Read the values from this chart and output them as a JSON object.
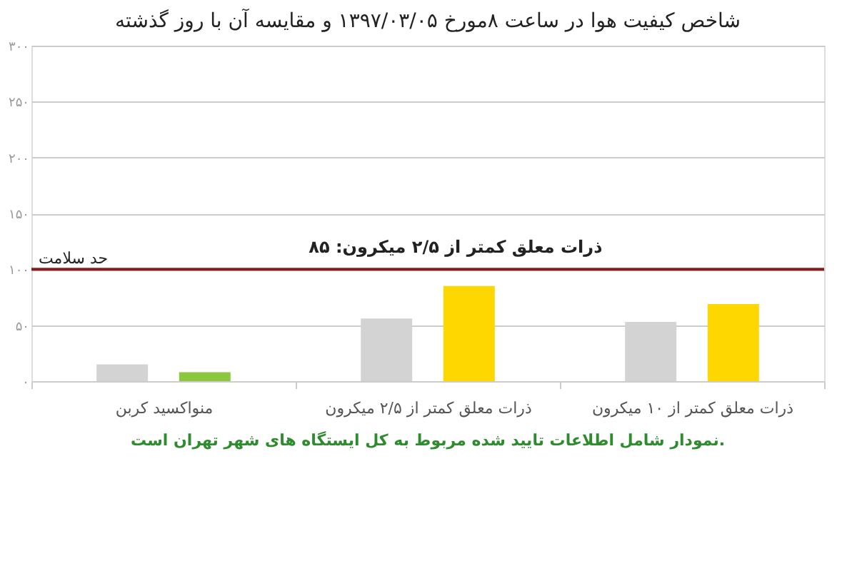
{
  "chart_data": {
    "type": "bar",
    "title": "شاخص کیفیت هوا در ساعت ۸مورخ ۱۳۹۷/۰۳/۰۵ و مقایسه آن با روز گذشته",
    "categories": [
      "منواکسید کربن",
      "ذرات معلق کمتر از ۲/۵ میکرون",
      "ذرات معلق کمتر از ۱۰ میکرون"
    ],
    "series": [
      {
        "color": "#d3d3d3",
        "values": [
          15,
          56,
          53
        ]
      },
      {
        "colors": [
          "#8dc63f",
          "#ffd700",
          "#ffd700"
        ],
        "values": [
          8,
          85,
          69
        ]
      }
    ],
    "ylim": [
      0,
      300
    ],
    "yticks": [
      {
        "value": 0,
        "label": "۰"
      },
      {
        "value": 50,
        "label": "۵۰"
      },
      {
        "value": 100,
        "label": "۱۰۰"
      },
      {
        "value": 150,
        "label": "۱۵۰"
      },
      {
        "value": 200,
        "label": "۲۰۰"
      },
      {
        "value": 250,
        "label": "۲۵۰"
      },
      {
        "value": 300,
        "label": "۳۰۰"
      }
    ],
    "grid": "y",
    "ref_lines": [
      {
        "axis": "y",
        "value": 100,
        "label": "حد سلامت",
        "color": "#8b1a1a"
      }
    ],
    "annotations": [
      "ذرات معلق کمتر از ۲/۵ میکرون: ۸۵",
      "نمودار شامل اطلاعات تایید شده مربوط به کل ایستگاه های شهر تهران است."
    ]
  }
}
